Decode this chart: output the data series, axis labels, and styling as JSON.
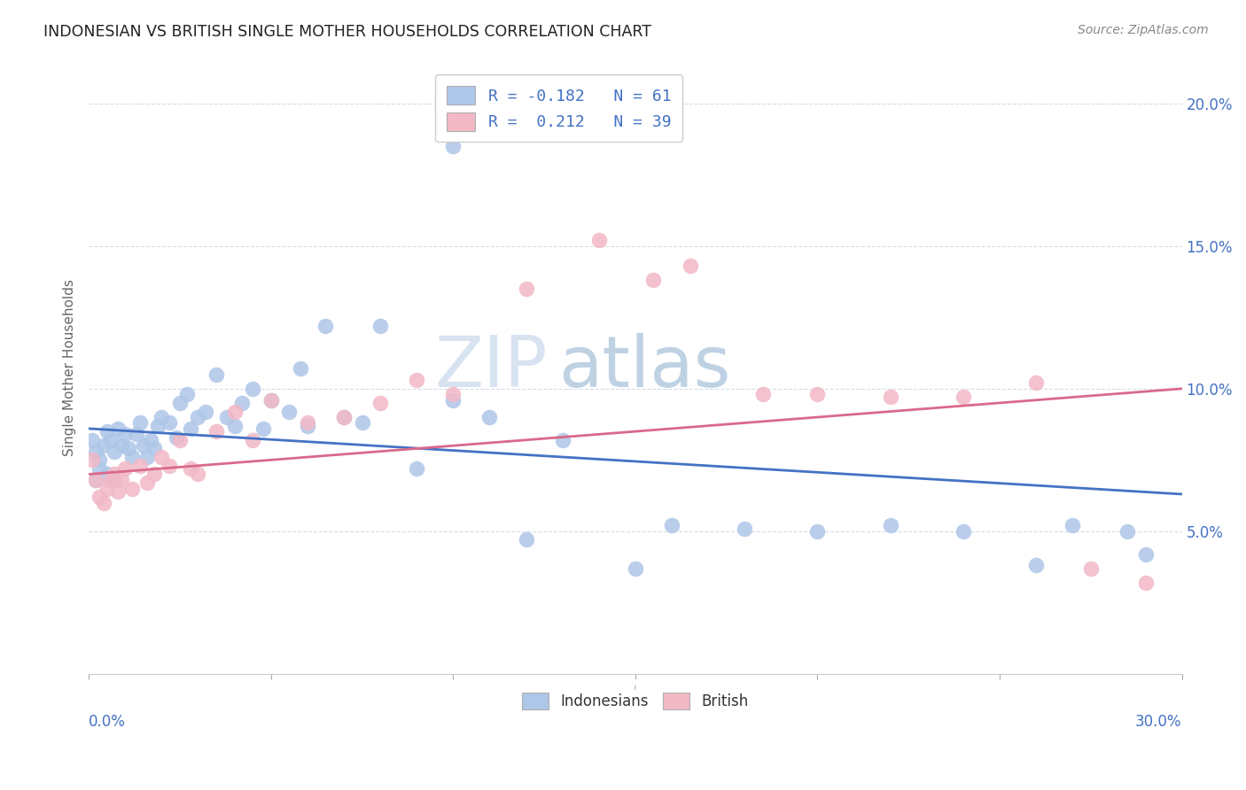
{
  "title": "INDONESIAN VS BRITISH SINGLE MOTHER HOUSEHOLDS CORRELATION CHART",
  "source": "Source: ZipAtlas.com",
  "ylabel": "Single Mother Households",
  "xlim": [
    0.0,
    0.3
  ],
  "ylim": [
    0.0,
    0.215
  ],
  "yticks": [
    0.05,
    0.1,
    0.15,
    0.2
  ],
  "ytick_labels": [
    "5.0%",
    "10.0%",
    "15.0%",
    "20.0%"
  ],
  "indonesian_color": "#aec6e8",
  "british_color": "#f2b8c6",
  "indonesian_line_color": "#4472c4",
  "british_line_color": "#d9698a",
  "watermark_zip": "ZIP",
  "watermark_atlas": "atlas",
  "background_color": "#ffffff",
  "grid_color": "#d5dce8",
  "r_indonesian": -0.182,
  "n_indonesian": 61,
  "r_british": 0.212,
  "n_british": 39,
  "ind_line_x0": 0.0,
  "ind_line_y0": 0.086,
  "ind_line_x1": 0.3,
  "ind_line_y1": 0.063,
  "brit_line_x0": 0.0,
  "brit_line_y0": 0.07,
  "brit_line_x1": 0.3,
  "brit_line_y1": 0.1,
  "indonesian_x": [
    0.001,
    0.002,
    0.003,
    0.004,
    0.005,
    0.006,
    0.007,
    0.008,
    0.009,
    0.01,
    0.011,
    0.012,
    0.013,
    0.014,
    0.015,
    0.016,
    0.017,
    0.018,
    0.019,
    0.02,
    0.022,
    0.024,
    0.025,
    0.027,
    0.028,
    0.03,
    0.032,
    0.035,
    0.038,
    0.04,
    0.042,
    0.045,
    0.048,
    0.05,
    0.055,
    0.058,
    0.06,
    0.065,
    0.07,
    0.075,
    0.08,
    0.09,
    0.1,
    0.11,
    0.12,
    0.13,
    0.15,
    0.16,
    0.18,
    0.2,
    0.22,
    0.24,
    0.26,
    0.27,
    0.285,
    0.29,
    0.002,
    0.003,
    0.005,
    0.007,
    0.1
  ],
  "indonesian_y": [
    0.082,
    0.078,
    0.075,
    0.08,
    0.085,
    0.082,
    0.078,
    0.086,
    0.08,
    0.084,
    0.079,
    0.076,
    0.084,
    0.088,
    0.08,
    0.076,
    0.082,
    0.079,
    0.087,
    0.09,
    0.088,
    0.083,
    0.095,
    0.098,
    0.086,
    0.09,
    0.092,
    0.105,
    0.09,
    0.087,
    0.095,
    0.1,
    0.086,
    0.096,
    0.092,
    0.107,
    0.087,
    0.122,
    0.09,
    0.088,
    0.122,
    0.072,
    0.096,
    0.09,
    0.047,
    0.082,
    0.037,
    0.052,
    0.051,
    0.05,
    0.052,
    0.05,
    0.038,
    0.052,
    0.05,
    0.042,
    0.068,
    0.072,
    0.07,
    0.068,
    0.185
  ],
  "british_x": [
    0.001,
    0.002,
    0.003,
    0.004,
    0.005,
    0.006,
    0.007,
    0.008,
    0.009,
    0.01,
    0.012,
    0.014,
    0.016,
    0.018,
    0.02,
    0.022,
    0.025,
    0.028,
    0.03,
    0.035,
    0.04,
    0.045,
    0.05,
    0.06,
    0.07,
    0.08,
    0.09,
    0.1,
    0.12,
    0.14,
    0.155,
    0.165,
    0.185,
    0.2,
    0.22,
    0.24,
    0.26,
    0.275,
    0.29
  ],
  "british_y": [
    0.075,
    0.068,
    0.062,
    0.06,
    0.065,
    0.068,
    0.07,
    0.064,
    0.068,
    0.072,
    0.065,
    0.073,
    0.067,
    0.07,
    0.076,
    0.073,
    0.082,
    0.072,
    0.07,
    0.085,
    0.092,
    0.082,
    0.096,
    0.088,
    0.09,
    0.095,
    0.103,
    0.098,
    0.135,
    0.152,
    0.138,
    0.143,
    0.098,
    0.098,
    0.097,
    0.097,
    0.102,
    0.037,
    0.032
  ]
}
